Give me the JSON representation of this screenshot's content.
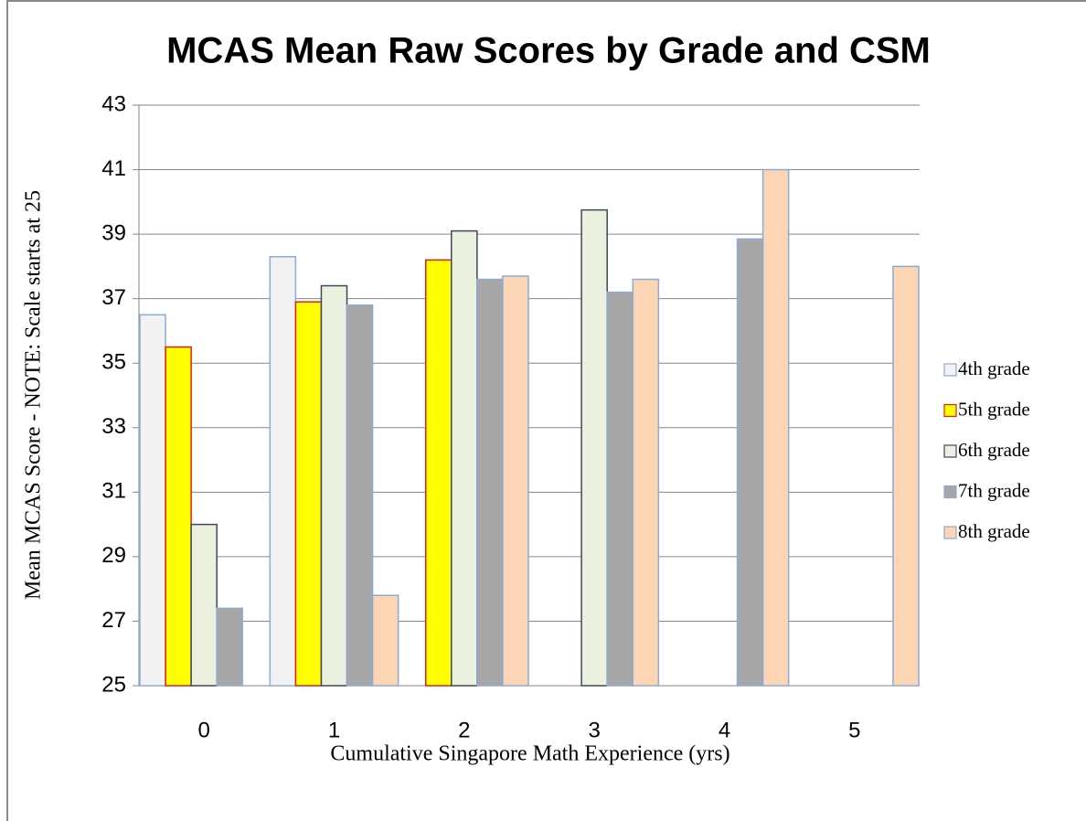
{
  "chart_data": {
    "type": "bar",
    "title": "MCAS Mean Raw Scores by Grade and CSM",
    "x_label": "Cumulative Singapore Math Experience (yrs)",
    "y_label": "Mean MCAS Score - NOTE: Scale starts at 25",
    "categories": [
      "0",
      "1",
      "2",
      "3",
      "4",
      "5"
    ],
    "series": [
      {
        "name": "4th grade",
        "color": "#f2f2f2",
        "border": "#8eaad8",
        "values": [
          36.5,
          38.3,
          null,
          null,
          null,
          null
        ]
      },
      {
        "name": "5th grade",
        "color": "#ffff00",
        "border": "#e02020",
        "values": [
          35.5,
          36.9,
          38.2,
          null,
          null,
          null
        ]
      },
      {
        "name": "6th grade",
        "color": "#ebf1de",
        "border": "#3b4a5c",
        "values": [
          30.0,
          37.4,
          39.1,
          39.75,
          null,
          null
        ]
      },
      {
        "name": "7th grade",
        "color": "#a6a6a6",
        "border": "#8eaad8",
        "values": [
          27.4,
          36.8,
          37.6,
          37.2,
          38.85,
          null
        ]
      },
      {
        "name": "8th grade",
        "color": "#fcd5b5",
        "border": "#8eaad8",
        "values": [
          null,
          27.8,
          37.7,
          37.6,
          41.0,
          38.0
        ]
      }
    ],
    "ylim": [
      25,
      43
    ],
    "yticks": [
      25,
      27,
      29,
      31,
      33,
      35,
      37,
      39,
      41,
      43
    ],
    "grid": true,
    "legend": "right"
  }
}
